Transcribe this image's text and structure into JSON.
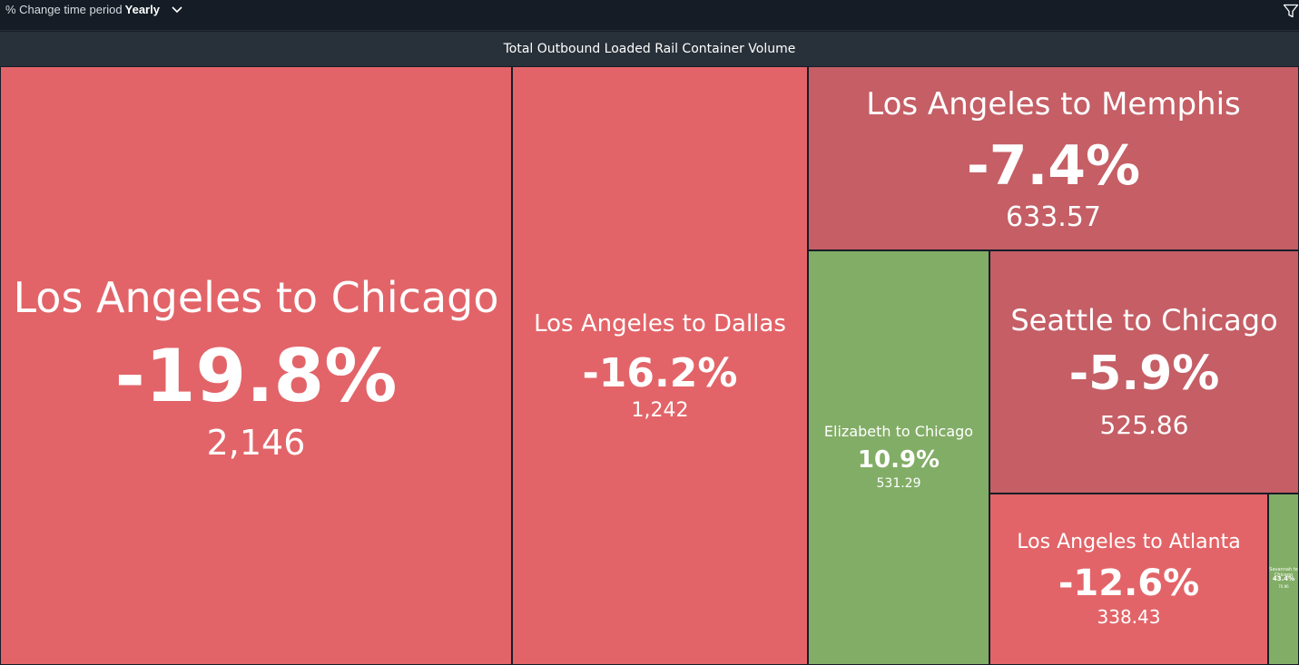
{
  "filter": {
    "label": "% Change time period",
    "value": "Yearly",
    "chevron_icon": "chevron-down-icon",
    "filter_icon": "filter-icon"
  },
  "chart_data": {
    "type": "treemap",
    "title": "Total Outbound Loaded Rail Container Volume",
    "value_label": "volume",
    "colors": {
      "decrease": "#e26468",
      "slight_decrease": "#c55e65",
      "increase": "#82ad66"
    },
    "nodes": [
      {
        "name": "Los Angeles to Chicago",
        "change": "-19.8%",
        "value": "2,146"
      },
      {
        "name": "Los Angeles to Dallas",
        "change": "-16.2%",
        "value": "1,242"
      },
      {
        "name": "Los Angeles to Memphis",
        "change": "-7.4%",
        "value": "633.57"
      },
      {
        "name": "Elizabeth to Chicago",
        "change": "10.9%",
        "value": "531.29"
      },
      {
        "name": "Seattle to Chicago",
        "change": "-5.9%",
        "value": "525.86"
      },
      {
        "name": "Los Angeles to Atlanta",
        "change": "-12.6%",
        "value": "338.43"
      },
      {
        "name": "Savannah to Chicago",
        "change": "43.4%",
        "value": "70.86"
      }
    ]
  }
}
